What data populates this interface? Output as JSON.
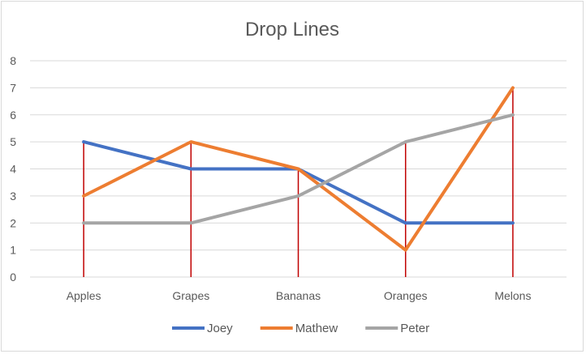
{
  "chart_data": {
    "type": "line",
    "title": "Drop Lines",
    "categories": [
      "Apples",
      "Grapes",
      "Bananas",
      "Oranges",
      "Melons"
    ],
    "series": [
      {
        "name": "Joey",
        "values": [
          5,
          4,
          4,
          2,
          2
        ],
        "color": "#4472c4"
      },
      {
        "name": "Mathew",
        "values": [
          3,
          5,
          4,
          1,
          7
        ],
        "color": "#ed7d31"
      },
      {
        "name": "Peter",
        "values": [
          2,
          2,
          3,
          5,
          6
        ],
        "color": "#a5a5a5"
      }
    ],
    "ylim": [
      0,
      8
    ],
    "yticks": [
      0,
      1,
      2,
      3,
      4,
      5,
      6,
      7,
      8
    ],
    "xlabel": "",
    "ylabel": "",
    "grid": true,
    "legend_position": "bottom",
    "drop_lines": true,
    "drop_line_color": "#c00000",
    "gridline_color": "#d9d9d9"
  }
}
